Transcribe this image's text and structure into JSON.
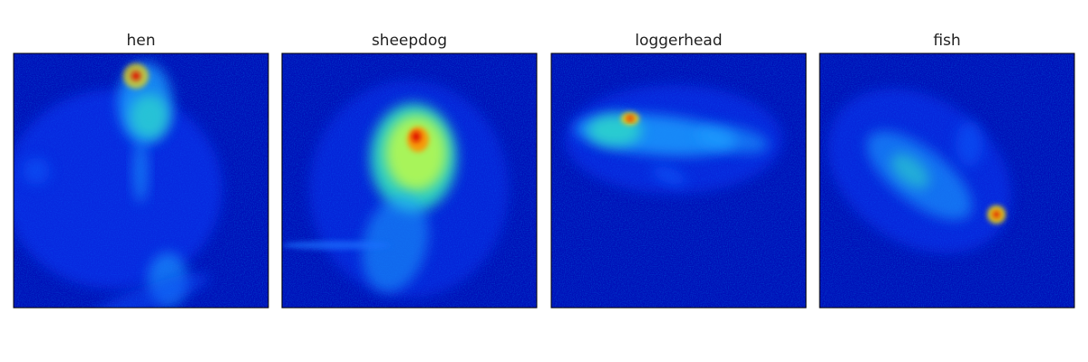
{
  "panels": [
    {
      "title": "hen"
    },
    {
      "title": "sheepdog"
    },
    {
      "title": "loggerhead"
    },
    {
      "title": "fish"
    }
  ]
}
